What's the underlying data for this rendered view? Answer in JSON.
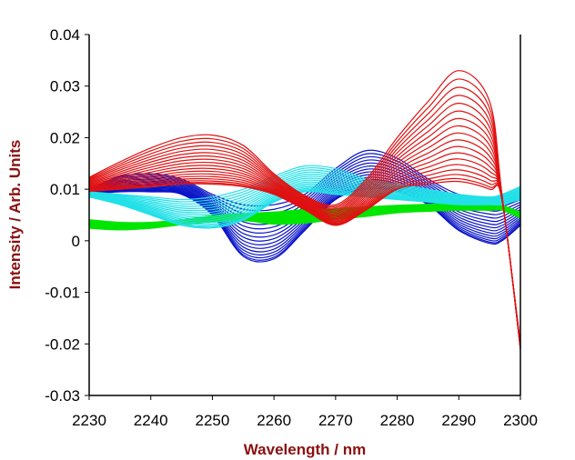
{
  "chart_data": {
    "type": "line",
    "title": "",
    "xlabel": "Wavelength / nm",
    "ylabel": "Intensity / Arb. Units",
    "xlim": [
      2230,
      2300
    ],
    "ylim": [
      -0.03,
      0.04
    ],
    "xticks": [
      "2230",
      "2240",
      "2250",
      "2260",
      "2270",
      "2280",
      "2290",
      "2300"
    ],
    "yticks": [
      "-0.03",
      "-0.02",
      "-0.01",
      "0",
      "0.01",
      "0.02",
      "0.03",
      "0.04"
    ],
    "grid": false,
    "legend": "none",
    "x": [
      2230,
      2235,
      2240,
      2245,
      2250,
      2255,
      2260,
      2265,
      2270,
      2275,
      2280,
      2285,
      2290,
      2295,
      2297,
      2300
    ],
    "series_groups": [
      {
        "name": "blue",
        "color": "#0a14c8",
        "count": 16,
        "upper": [
          0.01,
          0.0125,
          0.013,
          0.012,
          0.009,
          0.007,
          0.007,
          0.009,
          0.014,
          0.0175,
          0.016,
          0.012,
          0.009,
          0.008,
          0.008,
          0.009
        ],
        "lower": [
          0.009,
          0.0095,
          0.0095,
          0.009,
          0.005,
          -0.003,
          -0.0035,
          0.002,
          0.008,
          0.01,
          0.0095,
          0.007,
          0.002,
          -0.0005,
          0.0,
          0.003
        ]
      },
      {
        "name": "green",
        "color": "#00e600",
        "count": 22,
        "upper": [
          0.004,
          0.0035,
          0.0035,
          0.004,
          0.0048,
          0.0052,
          0.0055,
          0.006,
          0.0062,
          0.0065,
          0.0068,
          0.007,
          0.0072,
          0.007,
          0.0068,
          0.0055
        ],
        "lower": [
          0.0025,
          0.0022,
          0.0025,
          0.0032,
          0.0037,
          0.004,
          0.0033,
          0.0035,
          0.0042,
          0.0048,
          0.0055,
          0.0058,
          0.006,
          0.006,
          0.006,
          0.0045
        ]
      },
      {
        "name": "cyan",
        "color": "#22e0e8",
        "count": 16,
        "upper": [
          0.0095,
          0.009,
          0.0085,
          0.008,
          0.0085,
          0.01,
          0.0125,
          0.0145,
          0.014,
          0.012,
          0.011,
          0.01,
          0.009,
          0.0085,
          0.009,
          0.0105
        ],
        "lower": [
          0.0085,
          0.007,
          0.005,
          0.003,
          0.0025,
          0.004,
          0.0075,
          0.0095,
          0.009,
          0.0085,
          0.008,
          0.0075,
          0.007,
          0.007,
          0.007,
          0.008
        ]
      },
      {
        "name": "red",
        "color": "#e01010",
        "count": 18,
        "upper": [
          0.0123,
          0.0153,
          0.018,
          0.02,
          0.0205,
          0.0185,
          0.013,
          0.0088,
          0.007,
          0.012,
          0.02,
          0.027,
          0.033,
          0.027,
          0.009,
          -0.02
        ],
        "lower": [
          0.0096,
          0.01,
          0.0105,
          0.011,
          0.011,
          0.0105,
          0.009,
          0.006,
          0.003,
          0.006,
          0.01,
          0.011,
          0.0115,
          0.01,
          0.008,
          -0.021
        ]
      }
    ]
  }
}
